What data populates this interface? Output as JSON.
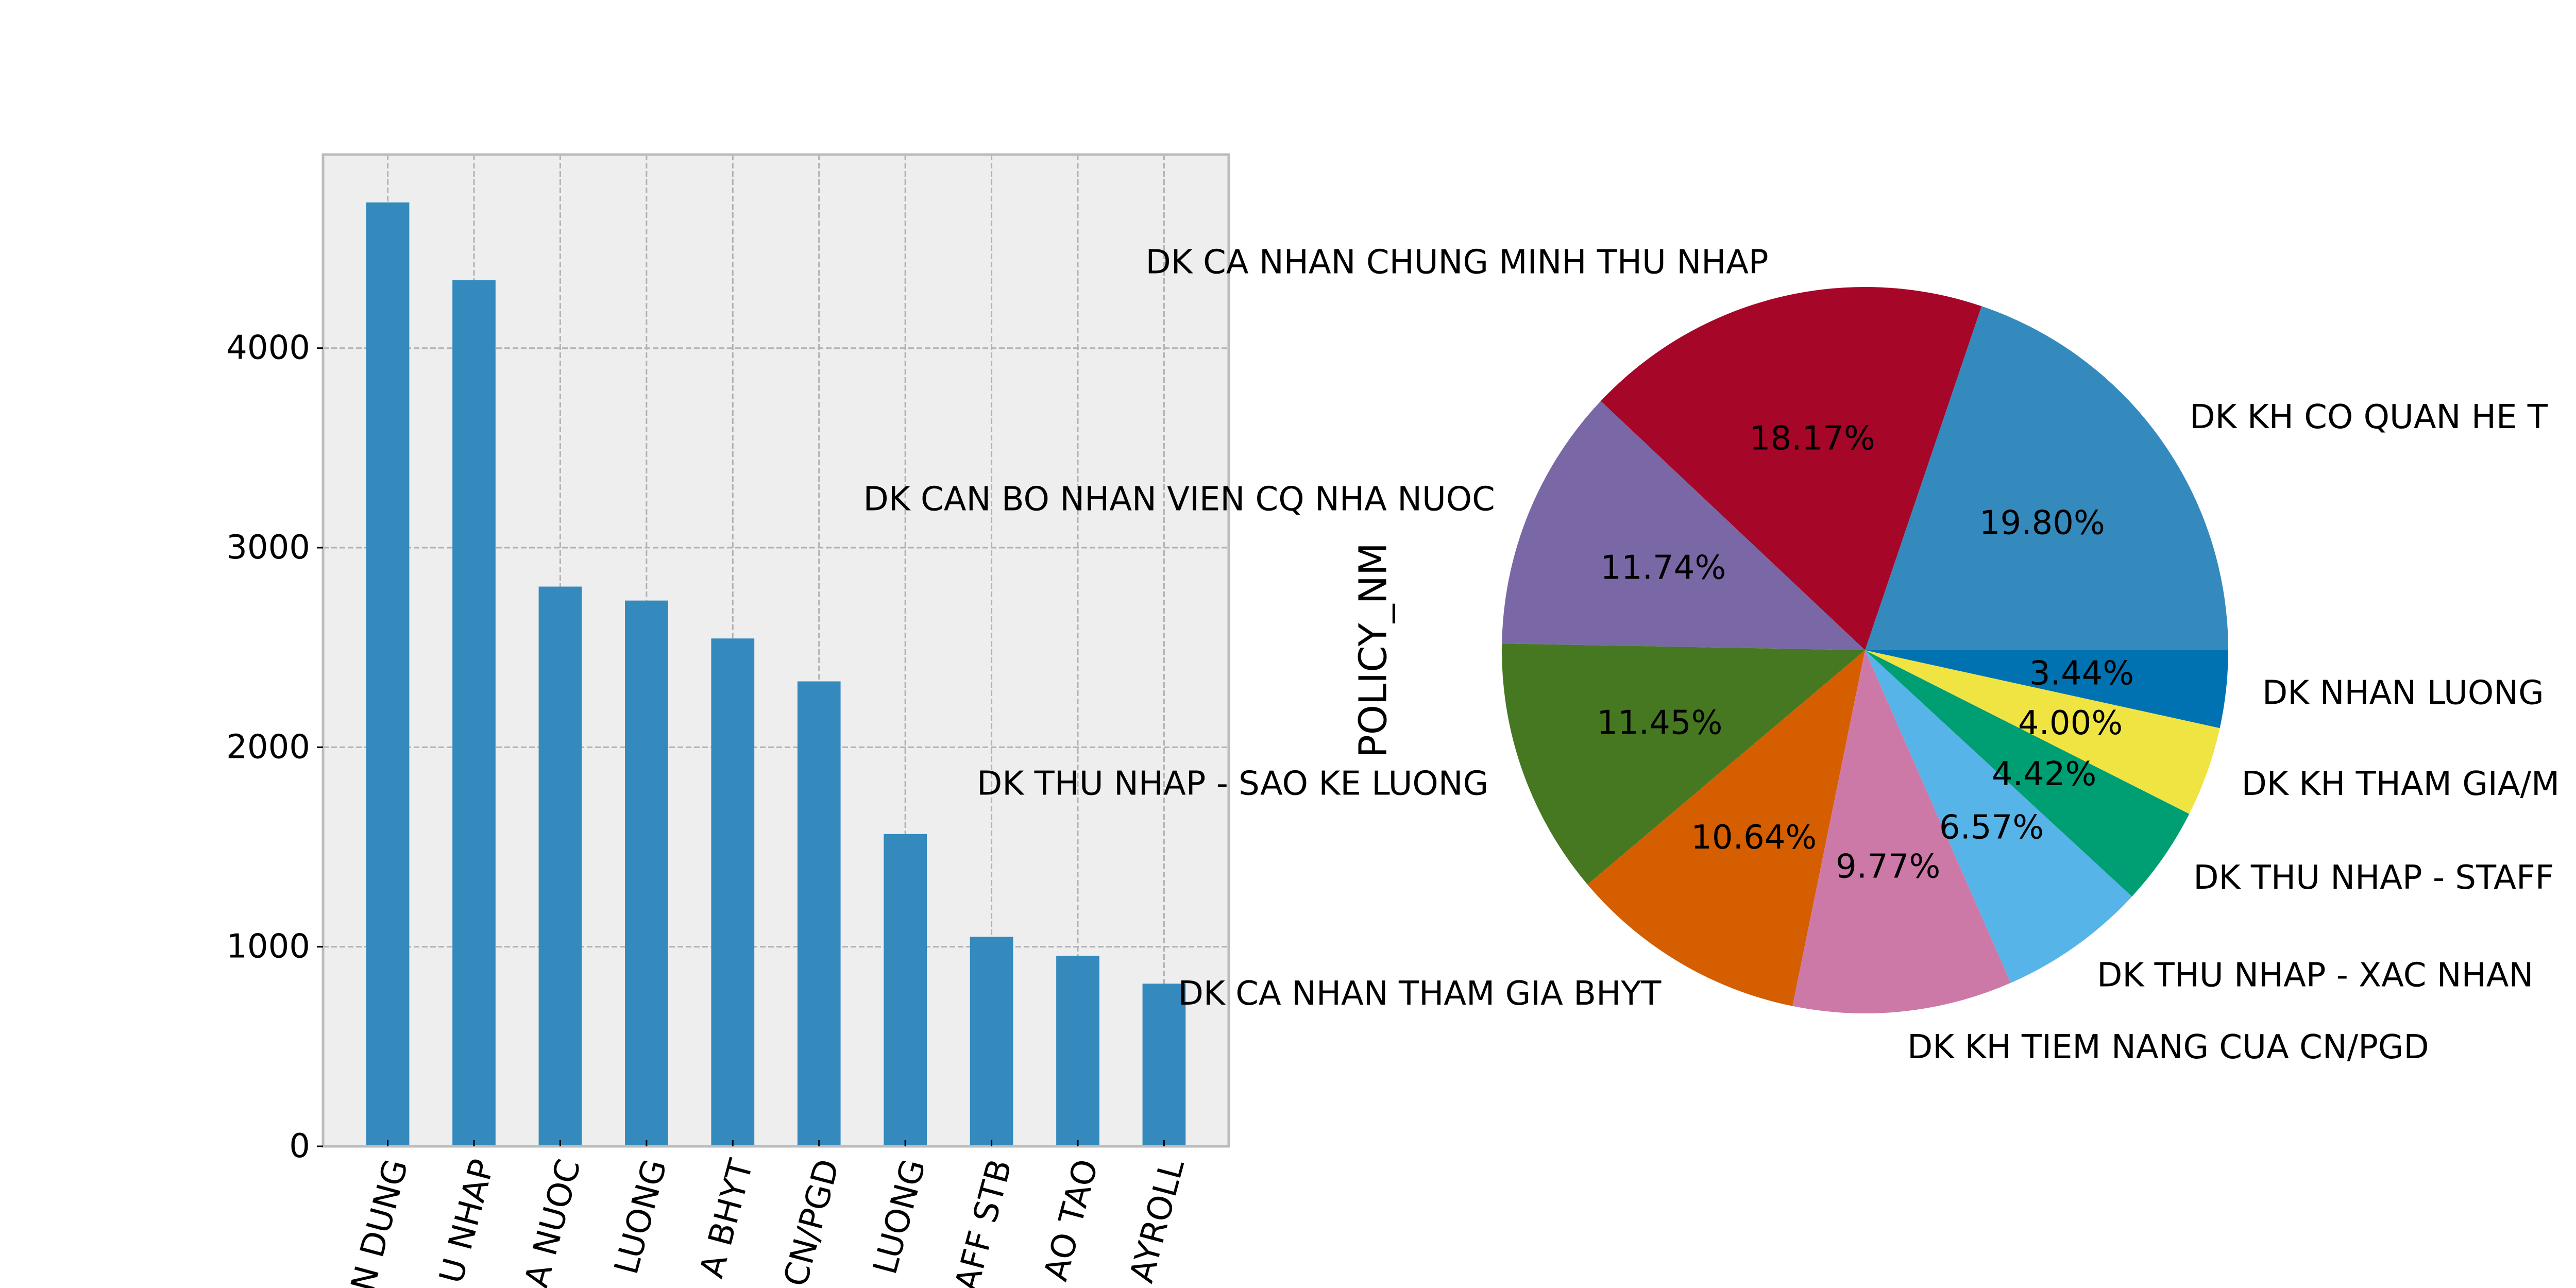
{
  "colors": {
    "axes_bg": "#eeeeee",
    "grid": "#b2b2b2",
    "frame": "#bcbcbc",
    "bar": "#348abd",
    "pie": [
      "#348abd",
      "#a60628",
      "#7a68a6",
      "#467821",
      "#d55e00",
      "#cc79a7",
      "#56b4e9",
      "#009e73",
      "#f0e442",
      "#0072b2"
    ]
  },
  "chart_data": [
    {
      "type": "bar",
      "categories": [
        "N DUNG",
        "U NHAP",
        "A NUOC",
        "LUONG",
        "A BHYT",
        "CN/PGD",
        "LUONG",
        "AFF STB",
        "AO TAO",
        "AYROLL"
      ],
      "values": [
        4730,
        4340,
        2805,
        2735,
        2545,
        2330,
        1565,
        1050,
        955,
        815
      ],
      "yticks": [
        "0",
        "1000",
        "2000",
        "3000",
        "4000"
      ],
      "ylim": [
        0,
        4970
      ],
      "grid": true,
      "xlabel": "",
      "ylabel": ""
    },
    {
      "type": "pie",
      "ylabel": "POLICY_NM",
      "labels": [
        "DK KH CO QUAN HE T",
        "DK CA NHAN CHUNG MINH THU NHAP",
        "DK CAN BO NHAN VIEN CQ NHA NUOC",
        "DK THU NHAP - SAO KE LUONG",
        "DK CA NHAN THAM GIA BHYT",
        "DK KH TIEM NANG CUA CN/PGD",
        "DK THU NHAP - XAC NHAN",
        "DK THU NHAP - STAFF",
        "DK KH THAM GIA/M",
        "DK NHAN LUONG"
      ],
      "values": [
        19.8,
        18.17,
        11.74,
        11.45,
        10.64,
        9.77,
        6.57,
        4.42,
        4.0,
        3.44
      ],
      "pct_labels": [
        "19.80%",
        "18.17%",
        "11.74%",
        "11.45%",
        "10.64%",
        "9.77%",
        "6.57%",
        "4.42%",
        "4.00%",
        "3.44%"
      ],
      "start_angle_deg": 0,
      "direction": "counterclockwise"
    }
  ]
}
